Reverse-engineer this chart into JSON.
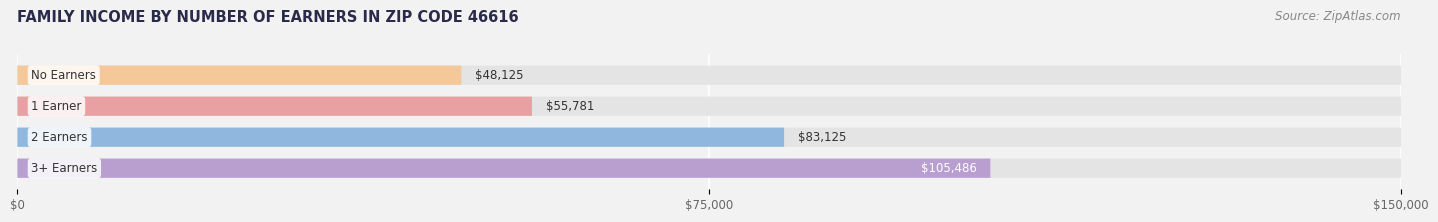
{
  "title": "FAMILY INCOME BY NUMBER OF EARNERS IN ZIP CODE 46616",
  "source": "Source: ZipAtlas.com",
  "categories": [
    "No Earners",
    "1 Earner",
    "2 Earners",
    "3+ Earners"
  ],
  "values": [
    48125,
    55781,
    83125,
    105486
  ],
  "bar_colors": [
    "#f5c899",
    "#e8a0a2",
    "#90b8df",
    "#b89fd0"
  ],
  "label_colors": [
    "#444444",
    "#444444",
    "#444444",
    "#ffffff"
  ],
  "xlim": [
    0,
    150000
  ],
  "xticks": [
    0,
    75000,
    150000
  ],
  "xtick_labels": [
    "$0",
    "$75,000",
    "$150,000"
  ],
  "background_color": "#f2f2f2",
  "bar_background_color": "#e4e4e4",
  "title_fontsize": 10.5,
  "source_fontsize": 8.5,
  "bar_label_fontsize": 8.5,
  "category_fontsize": 8.5,
  "tick_fontsize": 8.5
}
